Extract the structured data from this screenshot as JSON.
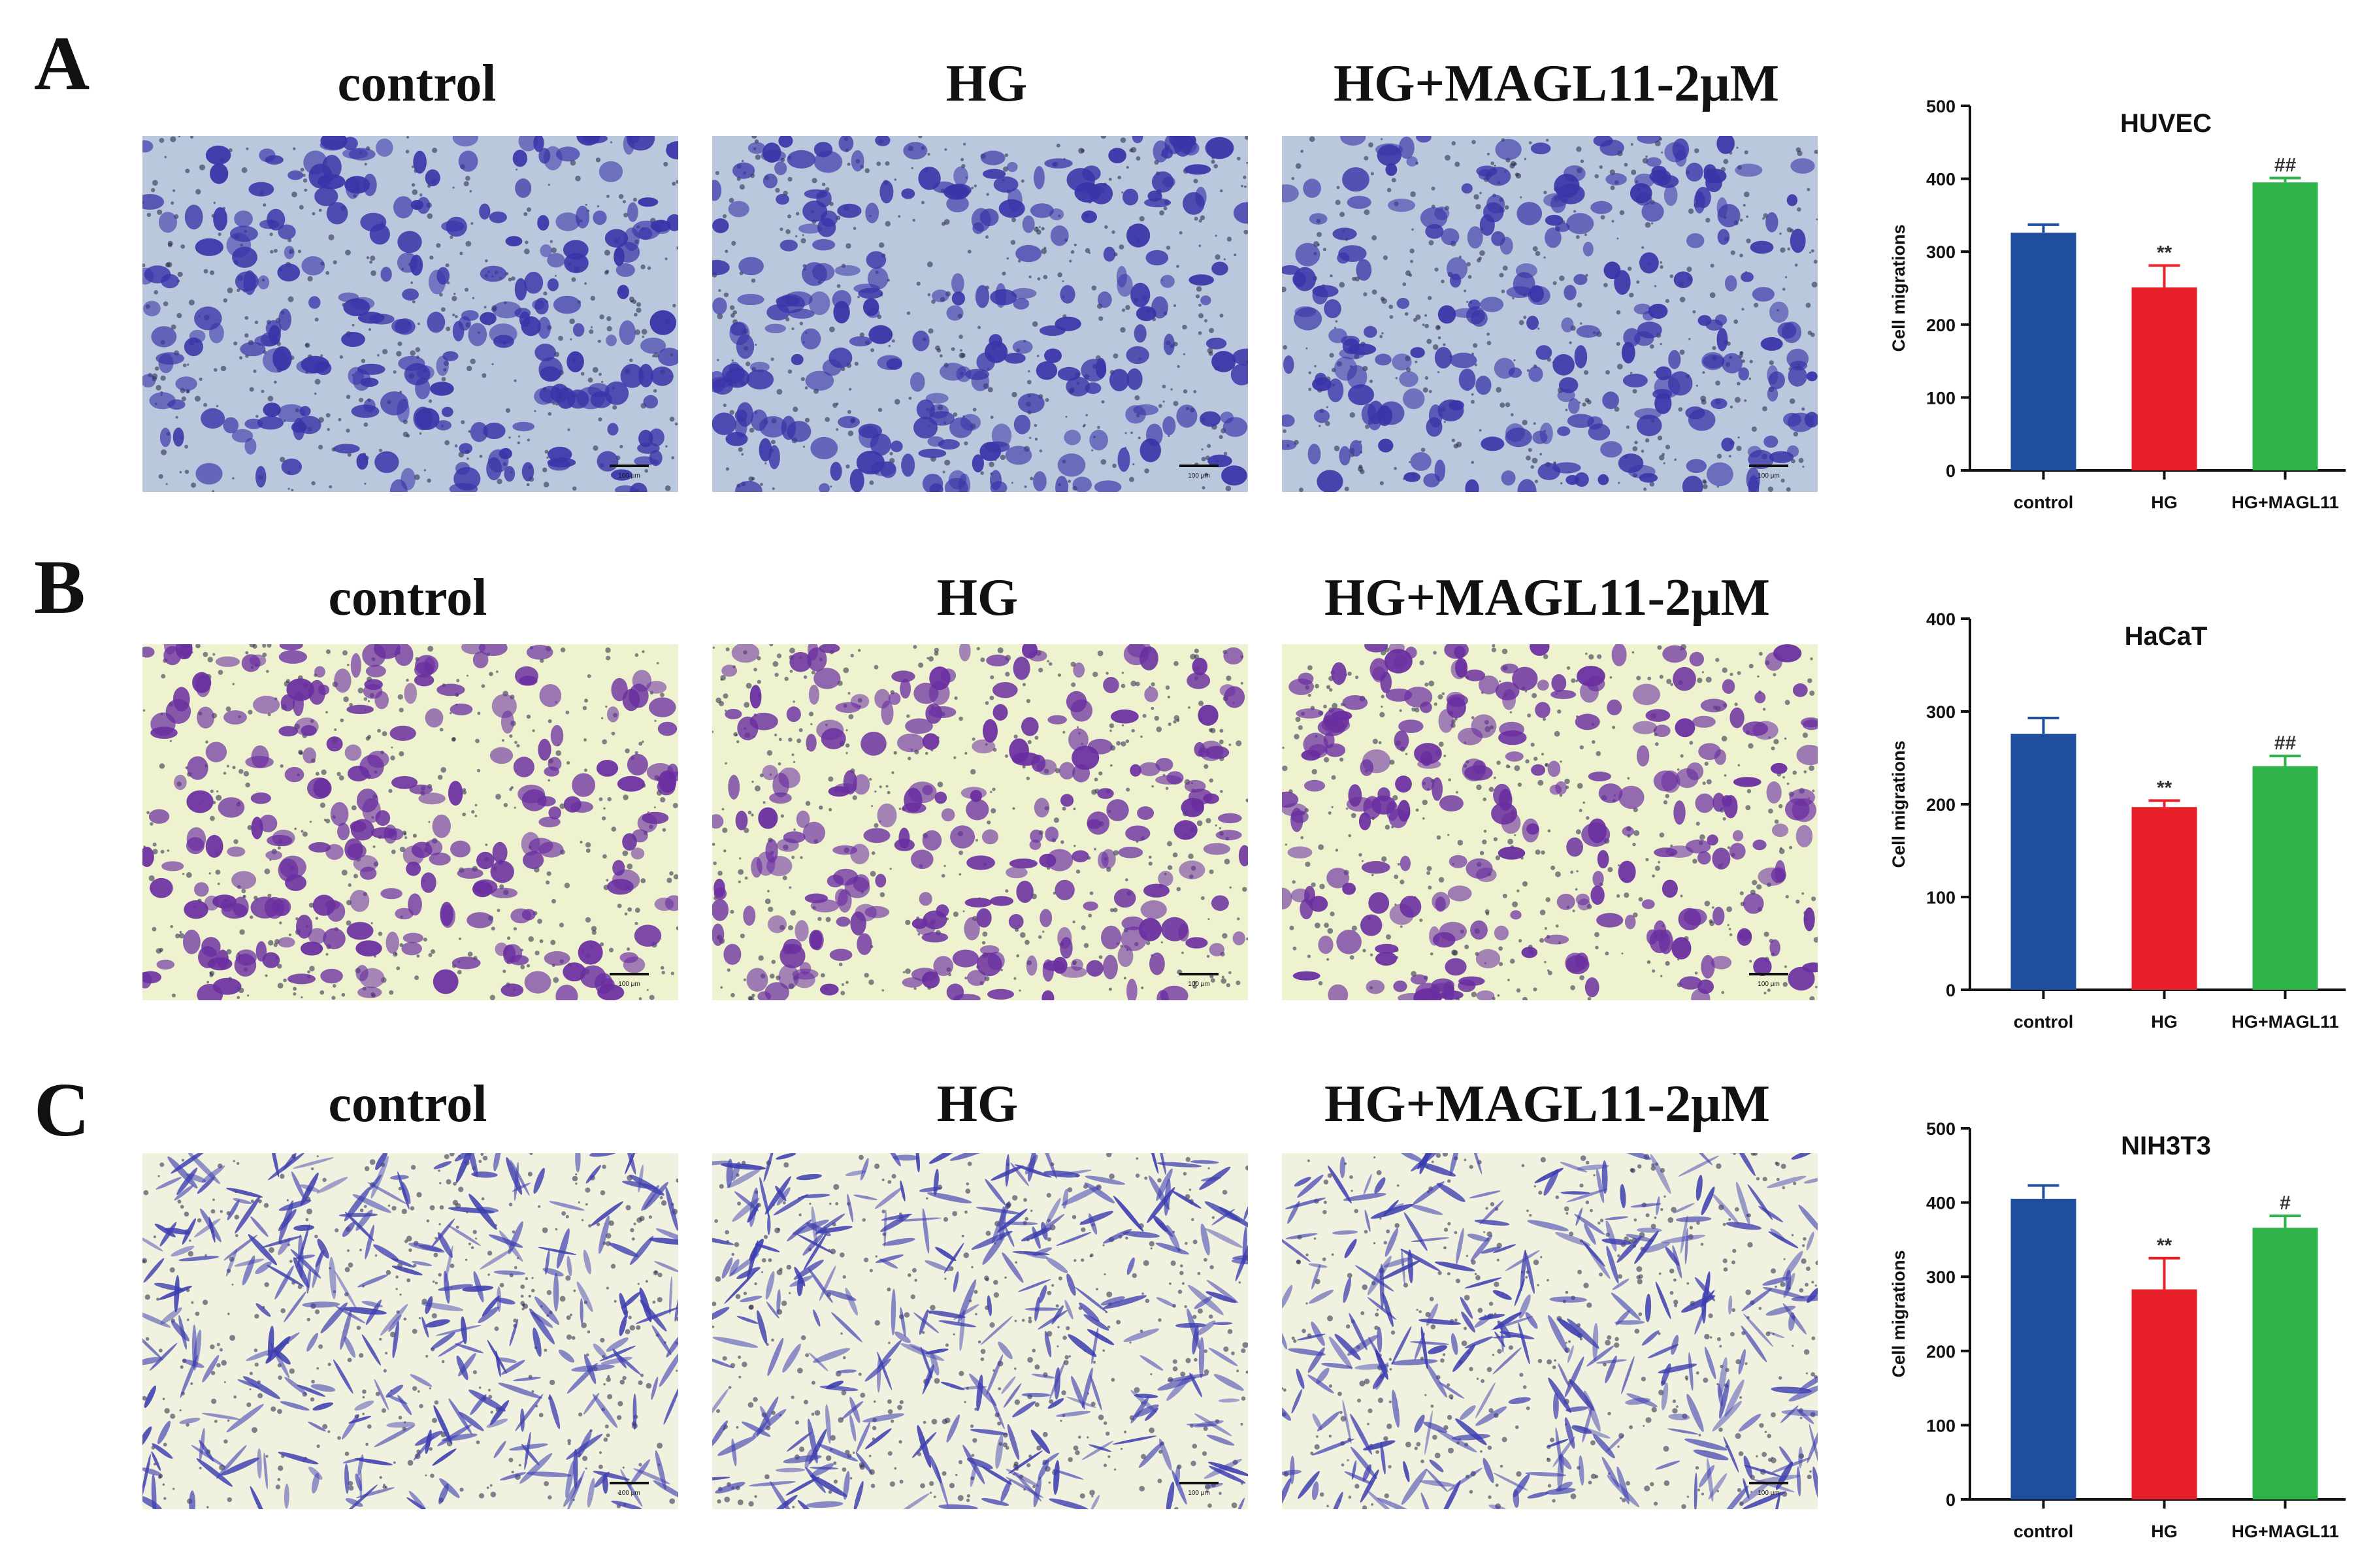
{
  "figure": {
    "rows": [
      {
        "letter": "A",
        "condition_titles": [
          "control",
          "HG",
          "HG+MAGL11-2μM"
        ],
        "scale_bar_label": "100 μm",
        "micrograph_style": {
          "background": "#b9c8dc",
          "cell_color": "#3a34a8",
          "cell_shape": "rounded"
        }
      },
      {
        "letter": "B",
        "condition_titles": [
          "control",
          "HG",
          "HG+MAGL11-2μM"
        ],
        "scale_bar_label": "100 μm",
        "micrograph_style": {
          "background": "#eef2cf",
          "cell_color": "#6a2ea0",
          "cell_shape": "rounded"
        }
      },
      {
        "letter": "C",
        "condition_titles": [
          "control",
          "HG",
          "HG+MAGL11-2μM"
        ],
        "scale_bar_label": "100 μm",
        "micrograph_style": {
          "background": "#f1f1df",
          "cell_color": "#3d3eb0",
          "cell_shape": "spindle"
        }
      }
    ]
  },
  "chart_data": [
    {
      "type": "bar",
      "title": "HUVEC",
      "ylabel": "Cell migrations",
      "categories": [
        "control",
        "HG",
        "HG+MAGL11"
      ],
      "values": [
        326,
        251,
        395
      ],
      "errors": [
        11,
        30,
        6
      ],
      "annotations": [
        "",
        "**",
        "##"
      ],
      "colors": [
        "#1f4e9e",
        "#e8202a",
        "#2eb348"
      ],
      "ylim": [
        0,
        500
      ],
      "yticks": [
        0,
        100,
        200,
        300,
        400,
        500
      ],
      "grid": false
    },
    {
      "type": "bar",
      "title": "HaCaT",
      "ylabel": "Cell migrations",
      "categories": [
        "control",
        "HG",
        "HG+MAGL11"
      ],
      "values": [
        276,
        197,
        241
      ],
      "errors": [
        17,
        7,
        11
      ],
      "annotations": [
        "",
        "**",
        "##"
      ],
      "colors": [
        "#1f4e9e",
        "#e8202a",
        "#2eb348"
      ],
      "ylim": [
        0,
        400
      ],
      "yticks": [
        0,
        100,
        200,
        300,
        400
      ],
      "grid": false
    },
    {
      "type": "bar",
      "title": "NIH3T3",
      "ylabel": "Cell migrations",
      "categories": [
        "control",
        "HG",
        "HG+MAGL11"
      ],
      "values": [
        405,
        283,
        366
      ],
      "errors": [
        18,
        42,
        16
      ],
      "annotations": [
        "",
        "**",
        "#"
      ],
      "colors": [
        "#1f4e9e",
        "#e8202a",
        "#2eb348"
      ],
      "ylim": [
        0,
        500
      ],
      "yticks": [
        0,
        100,
        200,
        300,
        400,
        500
      ],
      "grid": false
    }
  ]
}
